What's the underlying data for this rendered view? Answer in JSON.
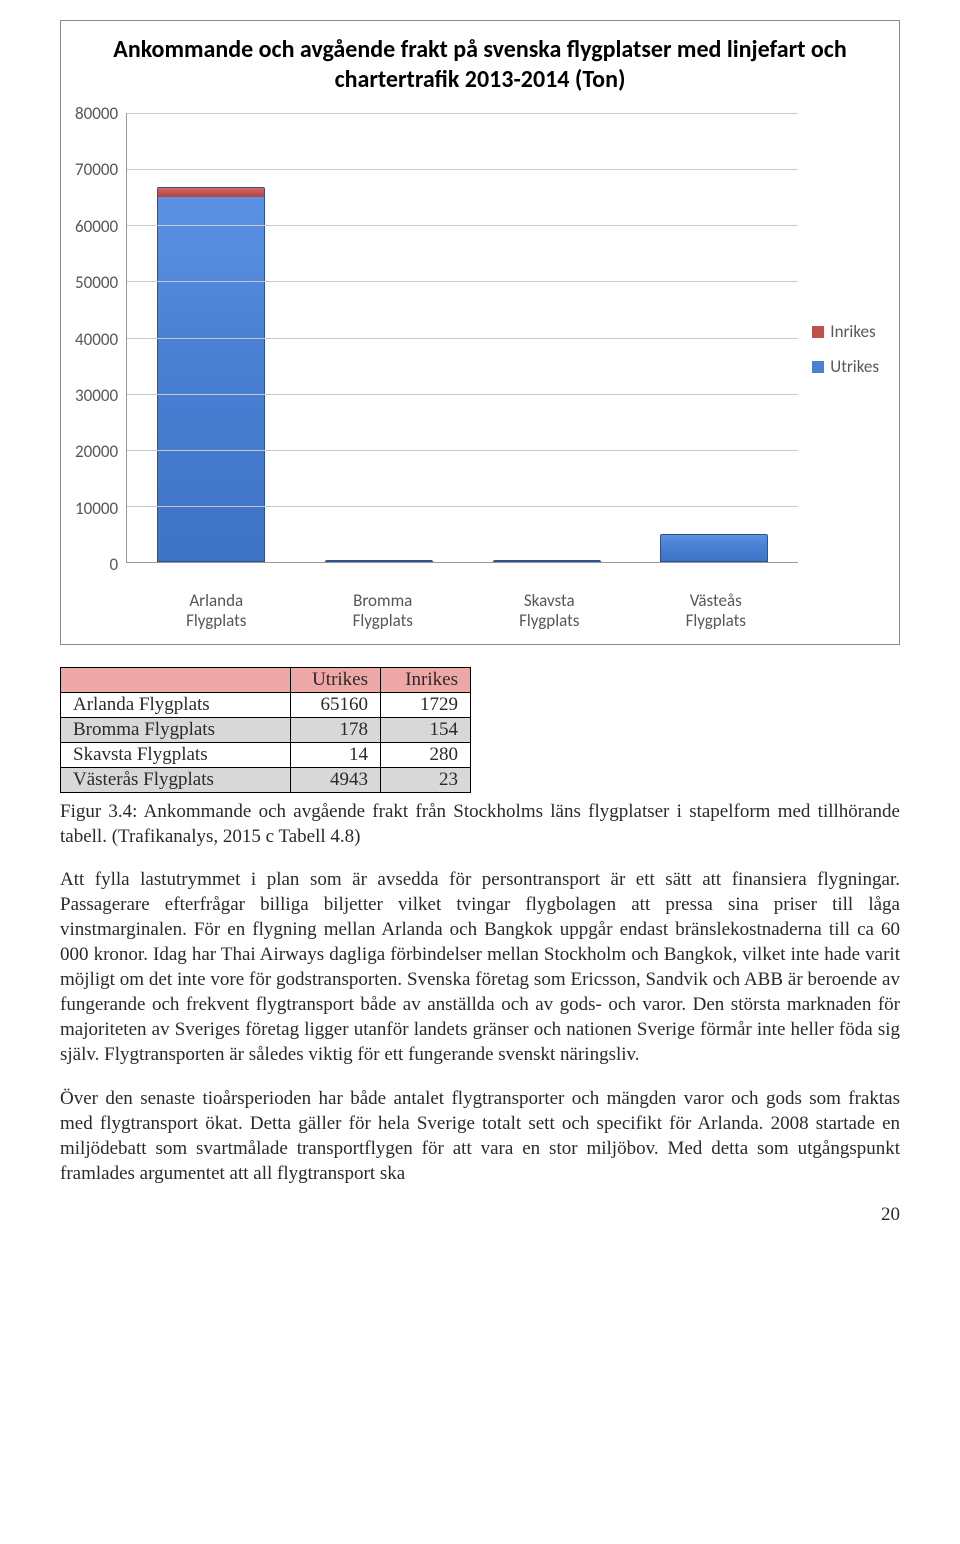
{
  "chart": {
    "type": "stacked-bar",
    "title": "Ankommande och avgående frakt på svenska flygplatser med linjefart och chartertrafik 2013-2014 (Ton)",
    "title_fontsize": 24,
    "y_max": 80000,
    "y_min": 0,
    "y_step": 10000,
    "y_ticks": [
      "80000",
      "70000",
      "60000",
      "50000",
      "40000",
      "30000",
      "20000",
      "10000",
      "0"
    ],
    "grid_color": "#c9c9c9",
    "border_color": "#8a8a8a",
    "background_color": "#ffffff",
    "categories": [
      "Arlanda Flygplats",
      "Bromma Flygplats",
      "Skavsta Flygplats",
      "Västeås Flygplats"
    ],
    "series": [
      {
        "name": "Inrikes",
        "color": "#c0504d"
      },
      {
        "name": "Utrikes",
        "color": "#4a81d4"
      }
    ],
    "data": {
      "utrikes": [
        65160,
        178,
        14,
        4943
      ],
      "inrikes": [
        1729,
        154,
        280,
        23
      ]
    },
    "legend": {
      "items": [
        {
          "label": "Inrikes",
          "color": "#c0504d"
        },
        {
          "label": "Utrikes",
          "color": "#4a81d4"
        }
      ]
    }
  },
  "table": {
    "columns": [
      "",
      "Utrikes",
      "Inrikes"
    ],
    "header_bg": "#eda7a7",
    "row_alt_bg": "#d8d8d8",
    "rows": [
      [
        "Arlanda Flygplats",
        "65160",
        "1729"
      ],
      [
        "Bromma Flygplats",
        "178",
        "154"
      ],
      [
        "Skavsta Flygplats",
        "14",
        "280"
      ],
      [
        "Västerås Flygplats",
        "4943",
        "23"
      ]
    ]
  },
  "caption": "Figur 3.4: Ankommande och avgående frakt från Stockholms läns flygplatser i stapelform med tillhörande tabell. (Trafikanalys, 2015 c Tabell 4.8)",
  "paragraphs": [
    "Att fylla lastutrymmet i plan som är avsedda för persontransport är ett sätt att finansiera flygningar. Passagerare efterfrågar billiga biljetter vilket tvingar flygbolagen att pressa sina priser till låga vinstmarginalen. För en flygning mellan Arlanda och Bangkok uppgår endast bränslekostnaderna till ca 60 000 kronor. Idag har Thai Airways dagliga förbindelser mellan Stockholm och Bangkok, vilket inte hade varit möjligt om det inte vore för godstransporten. Svenska företag som Ericsson, Sandvik och ABB är beroende av fungerande och frekvent flygtransport både av anställda och av gods- och varor. Den största marknaden för majoriteten av Sveriges företag ligger utanför landets gränser och nationen Sverige förmår inte heller föda sig själv. Flygtransporten är således viktig för ett fungerande svenskt näringsliv.",
    "Över den senaste tioårsperioden har både antalet flygtransporter och mängden varor och gods som fraktas med flygtransport ökat. Detta gäller för hela Sverige totalt sett och specifikt för Arlanda. 2008 startade en miljödebatt som svartmålade transportflygen för att vara en stor miljöbov. Med detta som utgångspunkt framlades argumentet att all flygtransport ska"
  ],
  "page_number": "20"
}
